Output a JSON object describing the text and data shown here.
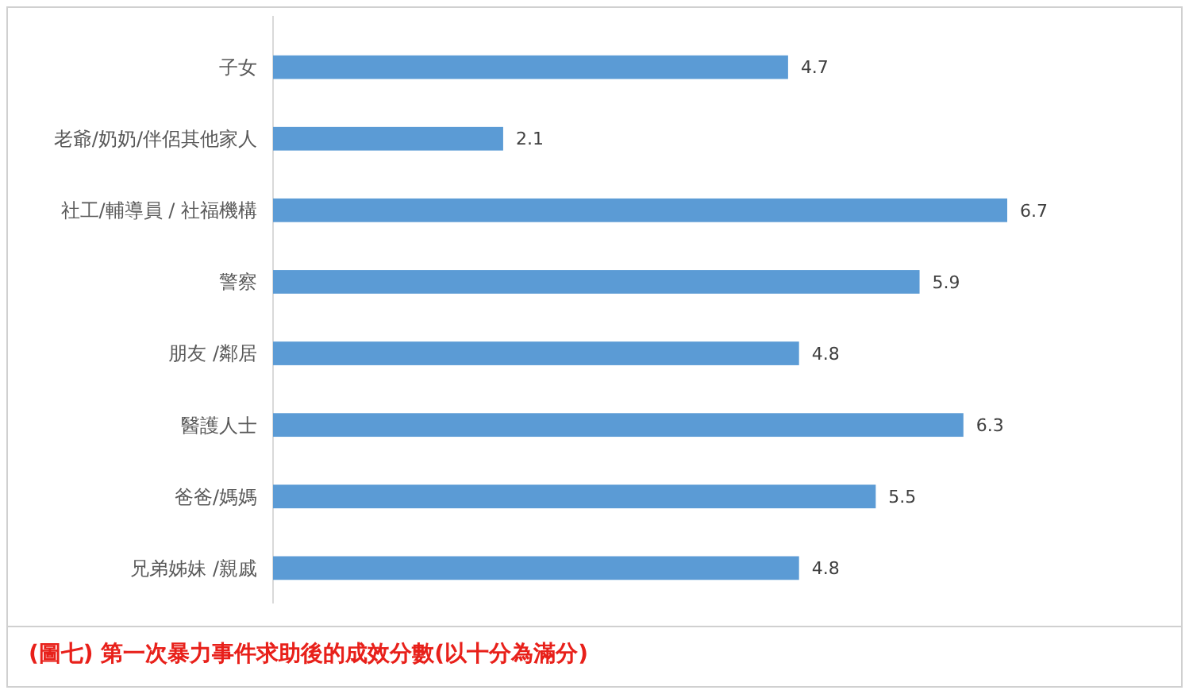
{
  "chart_data": {
    "type": "bar",
    "orientation": "horizontal",
    "title": "(圖七) 第一次暴力事件求助後的成效分數(以十分為滿分)",
    "categories": [
      "子女",
      "老爺/奶奶/伴侶其他家人",
      "社工/輔導員 / 社福機構",
      "警察",
      "朋友 /鄰居",
      "醫護人士",
      "爸爸/媽媽",
      "兄弟姊妹 /親戚"
    ],
    "values": [
      4.7,
      2.1,
      6.7,
      5.9,
      4.8,
      6.3,
      5.5,
      4.8
    ],
    "color": "#5b9bd5",
    "data_labels": true
  }
}
